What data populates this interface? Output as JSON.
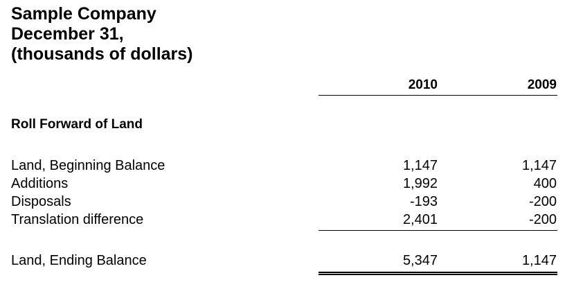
{
  "header": {
    "company": "Sample Company",
    "date": "December 31,",
    "units": "(thousands of dollars)"
  },
  "columns": {
    "year_1": "2010",
    "year_2": "2009"
  },
  "section": {
    "title": "Roll Forward of Land"
  },
  "rows": [
    {
      "label": "Land, Beginning Balance",
      "v2010": "1,147",
      "v2009": "1,147"
    },
    {
      "label": "Additions",
      "v2010": "1,992",
      "v2009": "400"
    },
    {
      "label": "Disposals",
      "v2010": "-193",
      "v2009": "-200"
    },
    {
      "label": "Translation difference",
      "v2010": "2,401",
      "v2009": "-200"
    }
  ],
  "total": {
    "label": "Land, Ending Balance",
    "v2010": "5,347",
    "v2009": "1,147"
  }
}
